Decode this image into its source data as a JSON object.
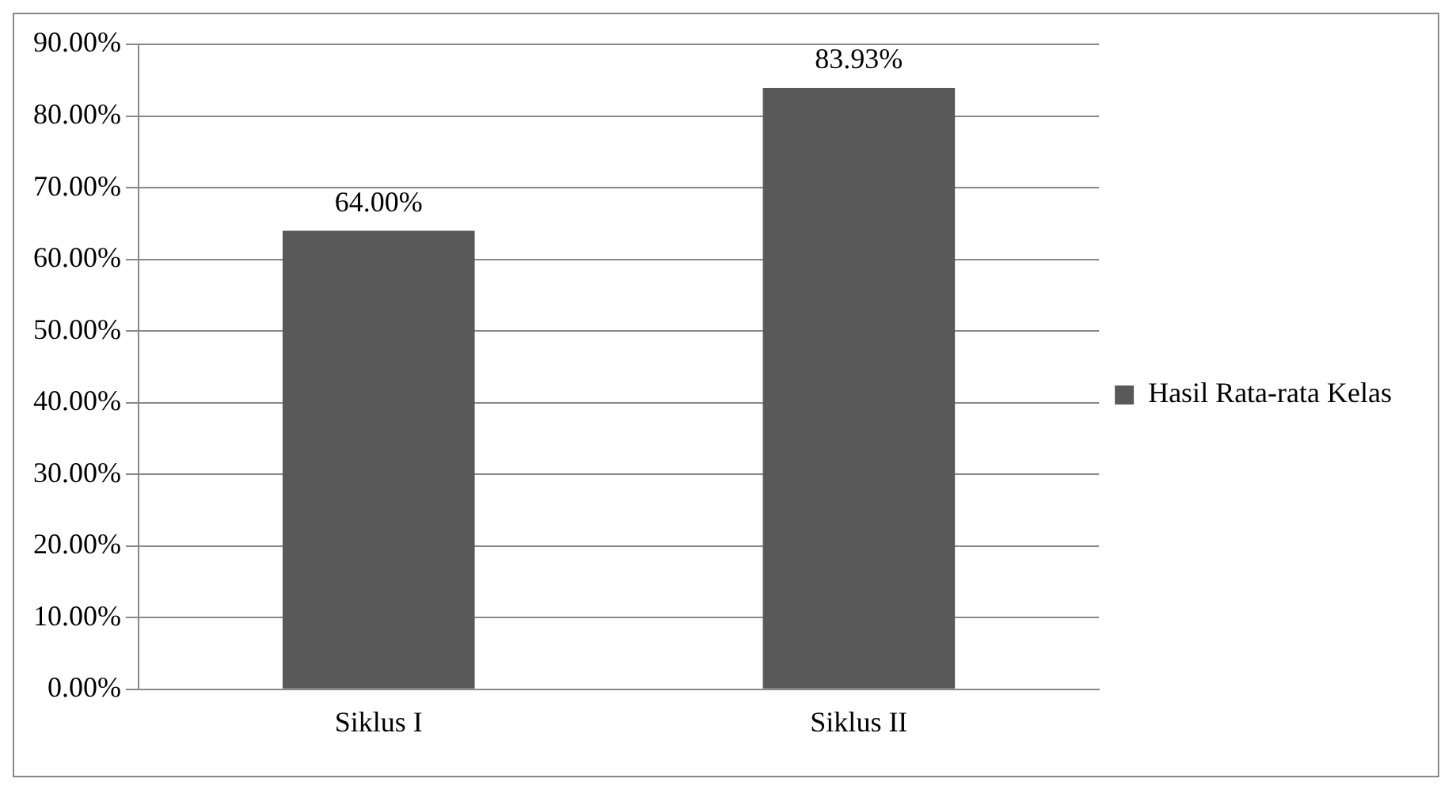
{
  "chart_data": {
    "type": "bar",
    "categories": [
      "Siklus I",
      "Siklus II"
    ],
    "series": [
      {
        "name": "Hasil Rata-rata Kelas",
        "color": "#595959",
        "values": [
          64.0,
          83.93
        ],
        "value_labels": [
          "64.00%",
          "83.93%"
        ]
      }
    ],
    "ylim": [
      0,
      90
    ],
    "yticks": [
      {
        "value": 0,
        "label": "0.00%"
      },
      {
        "value": 10,
        "label": "10.00%"
      },
      {
        "value": 20,
        "label": "20.00%"
      },
      {
        "value": 30,
        "label": "30.00%"
      },
      {
        "value": 40,
        "label": "40.00%"
      },
      {
        "value": 50,
        "label": "50.00%"
      },
      {
        "value": 60,
        "label": "60.00%"
      },
      {
        "value": 70,
        "label": "70.00%"
      },
      {
        "value": 80,
        "label": "80.00%"
      },
      {
        "value": 90,
        "label": "90.00%"
      }
    ],
    "grid": "y",
    "legend": "right"
  }
}
